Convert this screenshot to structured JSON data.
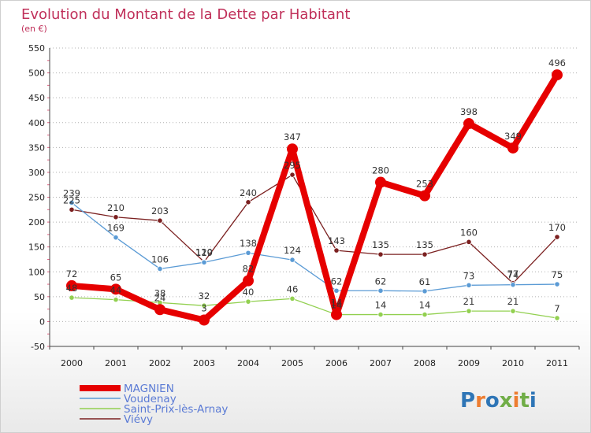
{
  "chart_data": {
    "type": "line",
    "title": "Evolution du Montant de la Dette par Habitant",
    "subtitle": "(en €)",
    "x": [
      "2000",
      "2001",
      "2002",
      "2003",
      "2004",
      "2005",
      "2006",
      "2007",
      "2008",
      "2009",
      "2010",
      "2011"
    ],
    "ylim": [
      -50,
      550
    ],
    "yticks": [
      -50,
      0,
      50,
      100,
      150,
      200,
      250,
      300,
      350,
      400,
      450,
      500,
      550
    ],
    "grid": "horizontal dotted",
    "legend_position": "bottom-left",
    "series": [
      {
        "name": "MAGNIEN",
        "color": "#e60000",
        "values": [
          72,
          65,
          24,
          3,
          82,
          347,
          14,
          280,
          253,
          398,
          349,
          496
        ]
      },
      {
        "name": "Voudenay",
        "color": "#5b9bd5",
        "values": [
          239,
          169,
          106,
          119,
          138,
          124,
          62,
          62,
          61,
          73,
          74,
          75
        ]
      },
      {
        "name": "Saint-Prix-lès-Arnay",
        "color": "#92d050",
        "values": [
          48,
          44,
          38,
          32,
          40,
          46,
          14,
          14,
          14,
          21,
          21,
          7
        ]
      },
      {
        "name": "Viévy",
        "color": "#7b2020",
        "values": [
          225,
          210,
          203,
          120,
          240,
          295,
          143,
          135,
          135,
          160,
          77,
          170
        ]
      }
    ],
    "data_labels": {
      "MAGNIEN": [
        "72",
        "65",
        "24",
        "3",
        "82",
        "347",
        "14",
        "280",
        "253",
        "398",
        "349",
        "496"
      ],
      "Voudenay": [
        "239",
        "169",
        "106",
        "119",
        "138",
        "124",
        "62",
        "62",
        "61",
        "73",
        "74",
        "75"
      ],
      "Saint-Prix-lès-Arnay": [
        "48",
        "44",
        "38",
        "32",
        "40",
        "46",
        "14",
        "14",
        "14",
        "21",
        "21",
        "7"
      ],
      "Viévy": [
        "225",
        "210",
        "203",
        "120",
        "240",
        "295",
        "143",
        "135",
        "135",
        "160",
        "77",
        "170"
      ]
    }
  },
  "logo": {
    "text": "Proxiti",
    "letter_colors": [
      "#2e75b6",
      "#ed7d31",
      "#2e75b6",
      "#70ad47",
      "#ed7d31",
      "#70ad47",
      "#2e75b6"
    ]
  }
}
